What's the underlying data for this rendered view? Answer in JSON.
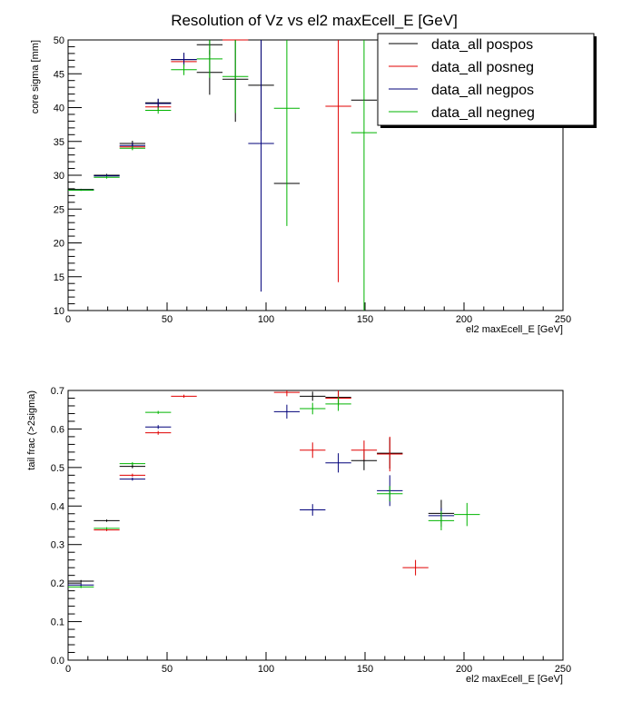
{
  "figure": {
    "title": "Resolution of Vz vs  el2 maxEcell_E [GeV]",
    "legend": [
      {
        "label": "data_all pospos",
        "color": "#000000"
      },
      {
        "label": "data_all posneg",
        "color": "#e00000"
      },
      {
        "label": "data_all negpos",
        "color": "#00007a"
      },
      {
        "label": "data_all negneg",
        "color": "#00b400"
      }
    ]
  },
  "chart_data": [
    {
      "type": "scatter",
      "title": "Resolution of Vz vs  el2 maxEcell_E [GeV]",
      "xlabel": "el2 maxEcell_E [GeV]",
      "ylabel": "core sigma [mm]",
      "xlim": [
        0,
        250
      ],
      "ylim": [
        10,
        50
      ],
      "xticks": [
        0,
        50,
        100,
        150,
        200,
        250
      ],
      "yticks": [
        10,
        15,
        20,
        25,
        30,
        35,
        40,
        45,
        50
      ],
      "grid": false,
      "legend_position": "top-right",
      "series": [
        {
          "name": "data_all pospos",
          "color": "#000000",
          "points": [
            {
              "x": 6.5,
              "y": 27.9,
              "xerr": 6.5,
              "yerr": 0.1
            },
            {
              "x": 19.5,
              "y": 30.0,
              "xerr": 6.5,
              "yerr": 0.2
            },
            {
              "x": 32.5,
              "y": 34.7,
              "xerr": 6.5,
              "yerr": 0.4
            },
            {
              "x": 45.5,
              "y": 40.7,
              "xerr": 6.5,
              "yerr": 0.6
            },
            {
              "x": 58.5,
              "y": 47.1,
              "xerr": 6.5,
              "yerr": 1.0
            },
            {
              "x": 71.5,
              "y": 49.3,
              "xerr": 6.5,
              "yerr": 1.5
            },
            {
              "x": 71.5,
              "y": 45.2,
              "xerr": 6.5,
              "yerr": 3.3
            },
            {
              "x": 84.5,
              "y": 44.2,
              "xerr": 6.5,
              "yerr": 6.3
            },
            {
              "x": 97.5,
              "y": 43.3,
              "xerr": 6.5,
              "yerr": 6.7
            },
            {
              "x": 110.5,
              "y": 28.8,
              "xerr": 6.5,
              "yerr": 0.1
            },
            {
              "x": 149.5,
              "y": 41.1,
              "xerr": 6.5,
              "yerr": 0.1
            }
          ]
        },
        {
          "name": "data_all posneg",
          "color": "#e00000",
          "points": [
            {
              "x": 32.5,
              "y": 34.2,
              "xerr": 6.5,
              "yerr": 0.4
            },
            {
              "x": 45.5,
              "y": 40.1,
              "xerr": 6.5,
              "yerr": 0.6
            },
            {
              "x": 58.5,
              "y": 46.8,
              "xerr": 6.5,
              "yerr": 0.8
            },
            {
              "x": 84.5,
              "y": 50.0,
              "xerr": 6.5,
              "yerr": 0.1
            },
            {
              "x": 136.5,
              "y": 40.2,
              "xerr": 6.5,
              "yerr": 26.0
            }
          ]
        },
        {
          "name": "data_all negpos",
          "color": "#00007a",
          "points": [
            {
              "x": 6.5,
              "y": 27.8,
              "xerr": 6.5,
              "yerr": 0.1
            },
            {
              "x": 19.5,
              "y": 29.9,
              "xerr": 6.5,
              "yerr": 0.2
            },
            {
              "x": 32.5,
              "y": 34.4,
              "xerr": 6.5,
              "yerr": 0.4
            },
            {
              "x": 45.5,
              "y": 40.6,
              "xerr": 6.5,
              "yerr": 0.7
            },
            {
              "x": 58.5,
              "y": 47.1,
              "xerr": 6.5,
              "yerr": 1.0
            },
            {
              "x": 97.5,
              "y": 34.7,
              "xerr": 6.5,
              "yerr": 21.9
            }
          ]
        },
        {
          "name": "data_all negneg",
          "color": "#00b400",
          "points": [
            {
              "x": 6.5,
              "y": 27.8,
              "xerr": 6.5,
              "yerr": 0.1
            },
            {
              "x": 19.5,
              "y": 29.7,
              "xerr": 6.5,
              "yerr": 0.2
            },
            {
              "x": 32.5,
              "y": 34.0,
              "xerr": 6.5,
              "yerr": 0.3
            },
            {
              "x": 45.5,
              "y": 39.6,
              "xerr": 6.5,
              "yerr": 0.5
            },
            {
              "x": 58.5,
              "y": 45.6,
              "xerr": 6.5,
              "yerr": 0.8
            },
            {
              "x": 71.5,
              "y": 47.2,
              "xerr": 6.5,
              "yerr": 2.8
            },
            {
              "x": 84.5,
              "y": 44.6,
              "xerr": 6.5,
              "yerr": 5.4
            },
            {
              "x": 110.5,
              "y": 39.9,
              "xerr": 6.5,
              "yerr": 17.4
            },
            {
              "x": 149.5,
              "y": 36.3,
              "xerr": 6.5,
              "yerr": 26.3
            }
          ]
        }
      ]
    },
    {
      "type": "scatter",
      "title": "",
      "xlabel": "el2 maxEcell_E [GeV]",
      "ylabel": "tail frac (>2sigma)",
      "xlim": [
        0,
        250
      ],
      "ylim": [
        0,
        0.7
      ],
      "xticks": [
        0,
        50,
        100,
        150,
        200,
        250
      ],
      "yticks": [
        0,
        0.1,
        0.2,
        0.3,
        0.4,
        0.5,
        0.6,
        0.7
      ],
      "grid": false,
      "series": [
        {
          "name": "data_all pospos",
          "color": "#000000",
          "points": [
            {
              "x": 6.5,
              "y": 0.205,
              "xerr": 6.5,
              "yerr": 0.003
            },
            {
              "x": 19.5,
              "y": 0.362,
              "xerr": 6.5,
              "yerr": 0.003
            },
            {
              "x": 32.5,
              "y": 0.503,
              "xerr": 6.5,
              "yerr": 0.005
            },
            {
              "x": 123.5,
              "y": 0.685,
              "xerr": 6.5,
              "yerr": 0.012
            },
            {
              "x": 136.5,
              "y": 0.682,
              "xerr": 6.5,
              "yerr": 0.015
            },
            {
              "x": 149.5,
              "y": 0.518,
              "xerr": 6.5,
              "yerr": 0.025
            },
            {
              "x": 162.5,
              "y": 0.537,
              "xerr": 6.5,
              "yerr": 0.04
            },
            {
              "x": 188.5,
              "y": 0.381,
              "xerr": 6.5,
              "yerr": 0.035
            }
          ]
        },
        {
          "name": "data_all posneg",
          "color": "#e00000",
          "points": [
            {
              "x": 19.5,
              "y": 0.338,
              "xerr": 6.5,
              "yerr": 0.003
            },
            {
              "x": 32.5,
              "y": 0.48,
              "xerr": 6.5,
              "yerr": 0.004
            },
            {
              "x": 45.5,
              "y": 0.59,
              "xerr": 6.5,
              "yerr": 0.005
            },
            {
              "x": 58.5,
              "y": 0.685,
              "xerr": 6.5,
              "yerr": 0.004
            },
            {
              "x": 110.5,
              "y": 0.695,
              "xerr": 6.5,
              "yerr": 0.01
            },
            {
              "x": 123.5,
              "y": 0.545,
              "xerr": 6.5,
              "yerr": 0.02
            },
            {
              "x": 136.5,
              "y": 0.68,
              "xerr": 6.5,
              "yerr": 0.02
            },
            {
              "x": 149.5,
              "y": 0.545,
              "xerr": 6.5,
              "yerr": 0.025
            },
            {
              "x": 162.5,
              "y": 0.535,
              "xerr": 6.5,
              "yerr": 0.045
            },
            {
              "x": 175.5,
              "y": 0.24,
              "xerr": 6.5,
              "yerr": 0.02
            }
          ]
        },
        {
          "name": "data_all negpos",
          "color": "#00007a",
          "points": [
            {
              "x": 6.5,
              "y": 0.195,
              "xerr": 6.5,
              "yerr": 0.003
            },
            {
              "x": 32.5,
              "y": 0.47,
              "xerr": 6.5,
              "yerr": 0.004
            },
            {
              "x": 45.5,
              "y": 0.605,
              "xerr": 6.5,
              "yerr": 0.005
            },
            {
              "x": 110.5,
              "y": 0.645,
              "xerr": 6.5,
              "yerr": 0.018
            },
            {
              "x": 123.5,
              "y": 0.39,
              "xerr": 6.5,
              "yerr": 0.015
            },
            {
              "x": 136.5,
              "y": 0.512,
              "xerr": 6.5,
              "yerr": 0.025
            },
            {
              "x": 162.5,
              "y": 0.44,
              "xerr": 6.5,
              "yerr": 0.04
            },
            {
              "x": 188.5,
              "y": 0.375,
              "xerr": 6.5,
              "yerr": 0.02
            }
          ]
        },
        {
          "name": "data_all negneg",
          "color": "#00b400",
          "points": [
            {
              "x": 6.5,
              "y": 0.19,
              "xerr": 6.5,
              "yerr": 0.003
            },
            {
              "x": 19.5,
              "y": 0.342,
              "xerr": 6.5,
              "yerr": 0.003
            },
            {
              "x": 32.5,
              "y": 0.51,
              "xerr": 6.5,
              "yerr": 0.004
            },
            {
              "x": 45.5,
              "y": 0.643,
              "xerr": 6.5,
              "yerr": 0.004
            },
            {
              "x": 123.5,
              "y": 0.653,
              "xerr": 6.5,
              "yerr": 0.015
            },
            {
              "x": 136.5,
              "y": 0.665,
              "xerr": 6.5,
              "yerr": 0.018
            },
            {
              "x": 162.5,
              "y": 0.432,
              "xerr": 6.5,
              "yerr": 0.02
            },
            {
              "x": 188.5,
              "y": 0.362,
              "xerr": 6.5,
              "yerr": 0.025
            },
            {
              "x": 201.5,
              "y": 0.378,
              "xerr": 6.5,
              "yerr": 0.03
            }
          ]
        }
      ]
    }
  ]
}
